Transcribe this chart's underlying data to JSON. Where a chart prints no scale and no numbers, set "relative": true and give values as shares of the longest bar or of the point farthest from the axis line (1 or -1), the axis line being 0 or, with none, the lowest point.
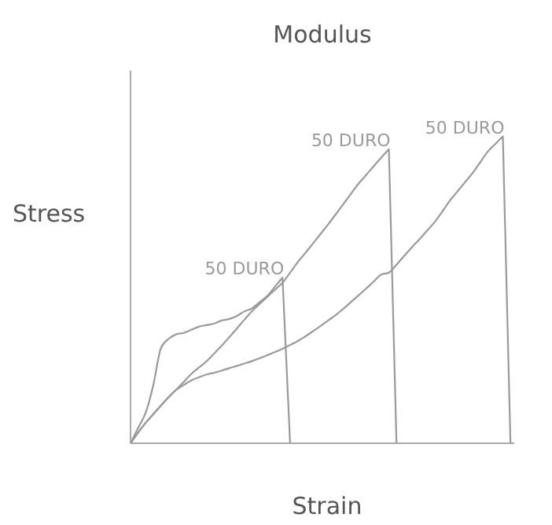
{
  "chart_data": {
    "type": "line",
    "title": "Modulus",
    "xlabel": "Strain",
    "ylabel": "Stress",
    "relative": true,
    "marker": "none",
    "categories": [
      null,
      null,
      null,
      null,
      null,
      null,
      null,
      null,
      null,
      null,
      null,
      null,
      null,
      null,
      null,
      null,
      null,
      null,
      null,
      null,
      null,
      null,
      null,
      null,
      null,
      null,
      null,
      null,
      null,
      null,
      null,
      null,
      null,
      null,
      null,
      null,
      null,
      null,
      null,
      null,
      null,
      null,
      null,
      null,
      null,
      null,
      null,
      null,
      null,
      null,
      null
    ],
    "series": [
      {
        "name": "50 DURO",
        "color": "#9a9a9a",
        "values": [
          0,
          0.05,
          0.1,
          0.19,
          0.31,
          0.34,
          0.355,
          0.36,
          0.37,
          0.38,
          0.385,
          0.39,
          0.4,
          0.405,
          0.415,
          0.43,
          0.44,
          0.46,
          0.48,
          0.51,
          0.54,
          0,
          null,
          null,
          null,
          null,
          null,
          null,
          null,
          null,
          null,
          null,
          null,
          null,
          null,
          null,
          null,
          null,
          null,
          null,
          null,
          null,
          null,
          null,
          null,
          null,
          null,
          null,
          null,
          null,
          null
        ]
      },
      {
        "name": "50 DURO",
        "color": "#9a9a9a",
        "values": [
          0,
          0.035,
          0.067,
          0.095,
          0.123,
          0.15,
          0.174,
          0.2,
          0.226,
          0.247,
          0.267,
          0.292,
          0.318,
          0.346,
          0.374,
          0.403,
          0.431,
          0.454,
          0.477,
          0.5,
          0.523,
          0.556,
          0.59,
          0.62,
          0.651,
          0.682,
          0.713,
          0.746,
          0.779,
          0.813,
          0.846,
          0.874,
          0.903,
          0.931,
          0.958,
          0,
          null,
          null,
          null,
          null,
          null,
          null,
          null,
          null,
          null,
          null,
          null,
          null,
          null,
          null,
          null
        ]
      },
      {
        "name": "50 DURO",
        "color": "#9a9a9a",
        "values": [
          0,
          0.035,
          0.067,
          0.095,
          0.123,
          0.15,
          0.174,
          0.19,
          0.205,
          0.215,
          0.224,
          0.23,
          0.237,
          0.245,
          0.252,
          0.26,
          0.268,
          0.277,
          0.287,
          0.297,
          0.308,
          0.32,
          0.333,
          0.348,
          0.365,
          0.382,
          0.4,
          0.418,
          0.438,
          0.46,
          0.482,
          0.504,
          0.527,
          0.55,
          0.556,
          0.582,
          0.61,
          0.638,
          0.664,
          0.692,
          0.72,
          0.754,
          0.79,
          0.82,
          0.85,
          0.88,
          0.915,
          0.95,
          0.975,
          1,
          0
        ]
      }
    ]
  }
}
